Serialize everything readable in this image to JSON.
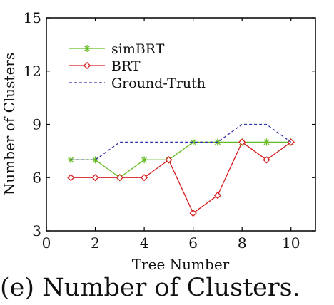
{
  "chart_data": {
    "type": "line",
    "x": [
      1,
      2,
      3,
      4,
      5,
      6,
      7,
      8,
      9,
      10
    ],
    "series": [
      {
        "name": "simBRT",
        "values": [
          7,
          7,
          6,
          7,
          7,
          8,
          8,
          8,
          8,
          8
        ],
        "color": "#66bb22",
        "marker": "star"
      },
      {
        "name": "BRT",
        "values": [
          6,
          6,
          6,
          6,
          7,
          4,
          5,
          8,
          7,
          8
        ],
        "color": "#d62020",
        "marker": "diamond"
      },
      {
        "name": "Ground-Truth",
        "values": [
          7,
          7,
          8,
          8,
          8,
          8,
          8,
          9,
          9,
          8
        ],
        "color": "#3333aa",
        "marker": "none",
        "dash": "dashed"
      }
    ],
    "xlabel": "Tree Number",
    "ylabel": "Number of Clusters",
    "xlim": [
      0,
      11
    ],
    "ylim": [
      3,
      15
    ],
    "xticks": [
      0,
      2,
      4,
      6,
      8,
      10
    ],
    "yticks": [
      3,
      6,
      9,
      12,
      15
    ],
    "grid": false,
    "legend_position": "top-left"
  },
  "caption": "(e) Number of Clusters."
}
